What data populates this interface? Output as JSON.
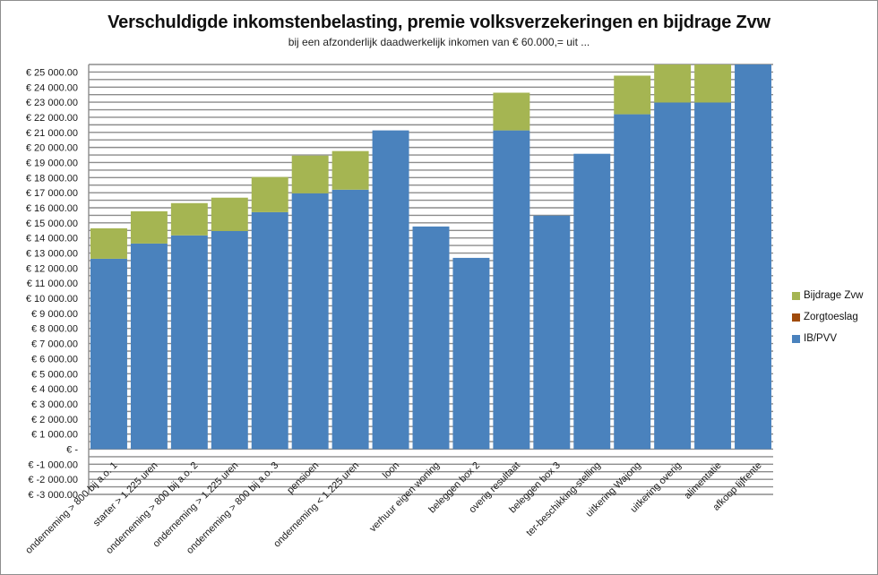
{
  "chart_data": {
    "type": "bar",
    "stacked": true,
    "title": "Verschuldigde inkomstenbelasting, premie volksverzekeringen en bijdrage Zvw",
    "subtitle": "bij een afzonderlijk daadwerkelijk inkomen van € 60.000,= uit ...",
    "xlabel": "",
    "ylabel": "",
    "ylim": [
      -3000,
      25500
    ],
    "grid": true,
    "grid_step": 500,
    "legend_position": "right",
    "yticks": [
      25000,
      24000,
      23000,
      22000,
      21000,
      20000,
      19000,
      18000,
      17000,
      16000,
      15000,
      14000,
      13000,
      12000,
      11000,
      10000,
      9000,
      8000,
      7000,
      6000,
      5000,
      4000,
      3000,
      2000,
      1000,
      0,
      -1000,
      -2000,
      -3000
    ],
    "ytick_labels": [
      "€ 25 000.00",
      "€ 24 000.00",
      "€ 23 000.00",
      "€ 22 000.00",
      "€ 21 000.00",
      "€ 20 000.00",
      "€ 19 000.00",
      "€ 18 000.00",
      "€ 17 000.00",
      "€ 16 000.00",
      "€ 15 000.00",
      "€ 14 000.00",
      "€ 13 000.00",
      "€ 12 000.00",
      "€ 11 000.00",
      "€ 10 000.00",
      "€ 9 000.00",
      "€ 8 000.00",
      "€ 7 000.00",
      "€ 6 000.00",
      "€ 5 000.00",
      "€ 4 000.00",
      "€ 3 000.00",
      "€ 2 000.00",
      "€ 1 000.00",
      "€ -",
      "€ -1 000.00",
      "€ -2 000.00",
      "€ -3 000.00"
    ],
    "categories": [
      "onderneming > 800 bij a.o. 1",
      "starter > 1.225 uren",
      "onderneming > 800 bij a.o. 2",
      "onderneming > 1.225 uren",
      "onderneming > 800 bij a.o. 3",
      "pensioen",
      "onderneming < 1.225 uren",
      "loon",
      "verhuur eigen woning",
      "beleggen box 2",
      "overig resultaat",
      "beleggen box 3",
      "ter-beschikking-stelling",
      "uitkering Wajong",
      "uitkering overig",
      "alimentatie",
      "afkoop lijfrente"
    ],
    "series": [
      {
        "name": "IB/PVV",
        "color": "#4A82BD",
        "values": [
          12620,
          13630,
          14170,
          14460,
          15710,
          16960,
          17200,
          21130,
          14760,
          12680,
          21130,
          15480,
          19580,
          22200,
          22980,
          22980,
          25500
        ]
      },
      {
        "name": "Zorgtoeslag",
        "color": "#A04B0C",
        "values": [
          0,
          0,
          0,
          0,
          0,
          0,
          0,
          0,
          0,
          0,
          0,
          0,
          0,
          0,
          0,
          0,
          0
        ]
      },
      {
        "name": "Bijdrage Zvw",
        "color": "#A5B552",
        "values": [
          2020,
          2140,
          2140,
          2210,
          2330,
          2500,
          2560,
          0,
          0,
          0,
          2500,
          0,
          0,
          2560,
          2520,
          2520,
          0
        ]
      }
    ],
    "legend": [
      "Bijdrage Zvw",
      "Zorgtoeslag",
      "IB/PVV"
    ]
  }
}
